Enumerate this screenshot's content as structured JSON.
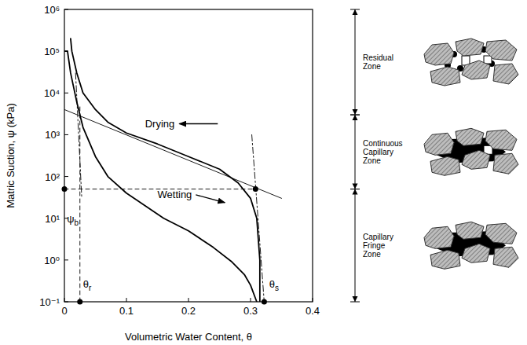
{
  "chart_data": {
    "type": "line",
    "log": "y",
    "grid": false,
    "xlabel": "Volumetric Water Content, θ",
    "ylabel": "Matric Suction, ψ (kPa)",
    "xlim": [
      0,
      0.4
    ],
    "xticks": [
      0,
      0.1,
      0.2,
      0.3,
      0.4
    ],
    "ylim": [
      0.1,
      1000000
    ],
    "yticks": [
      {
        "value": 0.1,
        "label": "10⁻¹"
      },
      {
        "value": 1,
        "label": "10⁰"
      },
      {
        "value": 10,
        "label": "10¹"
      },
      {
        "value": 100,
        "label": "10²"
      },
      {
        "value": 1000,
        "label": "10³"
      },
      {
        "value": 10000,
        "label": "10⁴"
      },
      {
        "value": 100000,
        "label": "10⁵"
      },
      {
        "value": 1000000,
        "label": "10⁶"
      }
    ],
    "series": [
      {
        "type": "line",
        "line_style": "solid",
        "color": "#000000",
        "x": [
          0.01,
          0.012,
          0.02,
          0.03,
          0.05,
          0.07,
          0.1,
          0.15,
          0.2,
          0.25,
          0.28,
          0.3,
          0.31,
          0.315,
          0.315
        ],
        "values": [
          200000,
          100000,
          30000,
          10000,
          4000,
          2000,
          1100,
          600,
          300,
          150,
          70,
          30,
          10,
          1,
          0.1
        ]
      },
      {
        "type": "line",
        "line_style": "solid",
        "color": "#000000",
        "x": [
          0,
          0.005,
          0.01,
          0.02,
          0.03,
          0.05,
          0.07,
          0.1,
          0.13,
          0.16,
          0.2,
          0.24,
          0.27,
          0.29,
          0.3,
          0.31
        ],
        "values": [
          100000,
          100000,
          30000,
          6000,
          1500,
          300,
          100,
          40,
          20,
          10,
          5,
          2,
          0.9,
          0.45,
          0.25,
          0.1
        ]
      },
      {
        "type": "line",
        "line_style": "thin",
        "color": "#000000",
        "x": [
          0,
          0.35
        ],
        "values": [
          4000,
          30
        ]
      },
      {
        "type": "line",
        "line_style": "dashdot",
        "color": "#000000",
        "x": [
          0.302,
          0.322
        ],
        "values": [
          1000,
          0.1
        ]
      },
      {
        "type": "line",
        "line_style": "dashdot",
        "color": "#000000",
        "x": [
          0.018,
          0.028
        ],
        "values": [
          30000,
          30
        ]
      },
      {
        "type": "line",
        "line_style": "dashed",
        "color": "#000000",
        "x": [
          0.025,
          0.025
        ],
        "values": [
          0.1,
          5000
        ]
      },
      {
        "type": "line",
        "line_style": "dashed",
        "color": "#000000",
        "x": [
          0,
          0.308
        ],
        "values": [
          50,
          50
        ]
      },
      {
        "type": "scatter",
        "marker": "circle",
        "color": "#000000",
        "x": [
          0.025,
          0.322,
          0,
          0.308
        ],
        "values": [
          0.1,
          0.1,
          50,
          50
        ]
      }
    ],
    "annotations": [
      {
        "text": "Drying",
        "x": 0.13,
        "y": 1500
      },
      {
        "text": "Wetting",
        "x": 0.15,
        "y": 30
      },
      {
        "text": "ψb",
        "x": 0.004,
        "y": 8
      },
      {
        "text": "θr",
        "x": 0.03,
        "y": 0.22
      },
      {
        "text": "θs",
        "x": 0.33,
        "y": 0.22
      }
    ],
    "zones": [
      {
        "label": "Residual Zone",
        "from": 3000,
        "to": 1000000
      },
      {
        "label": "Continuous Capillary Zone",
        "from": 50,
        "to": 3000
      },
      {
        "label": "Capillary Fringe Zone",
        "from": 0.1,
        "to": 50
      }
    ]
  }
}
